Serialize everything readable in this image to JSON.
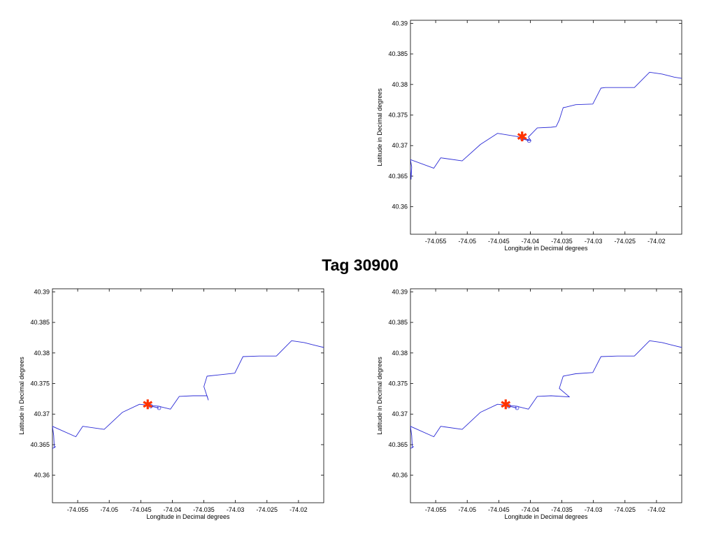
{
  "title": "Tag 30900",
  "colors": {
    "track": "#2b2bd6",
    "marker": "#ff3300",
    "axes": "#000000"
  },
  "chart_data": [
    {
      "type": "line",
      "xlabel": "Longitude in Decimal degrees",
      "ylabel": "Latitude in Decimal degrees",
      "xlim": [
        -74.059,
        -74.016
      ],
      "ylim": [
        40.3555,
        40.3905
      ],
      "xticks": [
        -74.055,
        -74.05,
        -74.045,
        -74.04,
        -74.035,
        -74.03,
        -74.025,
        -74.02
      ],
      "xtick_labels": [
        "-74.055",
        "-74.05",
        "-74.045",
        "-74.04",
        "-74.035",
        "-74.03",
        "-74.025",
        "-74.02"
      ],
      "yticks": [
        40.36,
        40.365,
        40.37,
        40.375,
        40.38,
        40.385,
        40.39
      ],
      "ytick_labels": [
        "40.36",
        "40.365",
        "40.37",
        "40.375",
        "40.38",
        "40.385",
        "40.39"
      ],
      "grid": false,
      "series": [
        {
          "x": [
            -74.0591,
            -74.0589,
            -74.0588,
            -74.059,
            -74.0553,
            -74.0542,
            -74.0508,
            -74.0479,
            -74.0452,
            -74.0422,
            -74.0414,
            -74.0399,
            -74.0403,
            -74.0389,
            -74.0367,
            -74.0359,
            -74.0354,
            -74.0348,
            -74.0343,
            -74.0328,
            -74.0301,
            -74.0288,
            -74.0281,
            -74.0261,
            -74.0235,
            -74.0211,
            -74.0191,
            -74.0172,
            -74.016
          ],
          "y": [
            40.368,
            40.3645,
            40.3665,
            40.3677,
            40.3663,
            40.368,
            40.3675,
            40.3702,
            40.372,
            40.3715,
            40.3713,
            40.3708,
            40.3714,
            40.3729,
            40.373,
            40.3731,
            40.3742,
            40.3762,
            40.3763,
            40.3767,
            40.3768,
            40.3794,
            40.3795,
            40.3795,
            40.3795,
            40.382,
            40.3817,
            40.3812,
            40.381
          ]
        },
        {
          "x": [
            -74.0413,
            -74.0402
          ],
          "y": [
            40.3711,
            40.3708
          ]
        }
      ],
      "markers": [
        {
          "x": -74.0413,
          "y": 40.3715,
          "symbol": "asterisk"
        }
      ]
    },
    {
      "type": "line",
      "xlabel": "Longitude in Decimal degrees",
      "ylabel": "Latitude in Decimal degrees",
      "xlim": [
        -74.059,
        -74.016
      ],
      "ylim": [
        40.3555,
        40.3905
      ],
      "xticks": [
        -74.055,
        -74.05,
        -74.045,
        -74.04,
        -74.035,
        -74.03,
        -74.025,
        -74.02
      ],
      "xtick_labels": [
        "-74.055",
        "-74.05",
        "-74.045",
        "-74.04",
        "-74.035",
        "-74.03",
        "-74.025",
        "-74.02"
      ],
      "yticks": [
        40.36,
        40.365,
        40.37,
        40.375,
        40.38,
        40.385,
        40.39
      ],
      "ytick_labels": [
        "40.36",
        "40.365",
        "40.37",
        "40.375",
        "40.38",
        "40.385",
        "40.39"
      ],
      "grid": false,
      "series": [
        {
          "x": [
            -74.0591,
            -74.0585,
            -74.0587,
            -74.0588,
            -74.059,
            -74.0553,
            -74.0542,
            -74.0508,
            -74.0479,
            -74.0452,
            -74.0422,
            -74.0403,
            -74.0389,
            -74.0367,
            -74.0345,
            -74.0343,
            -74.035,
            -74.0345,
            -74.0328,
            -74.0301,
            -74.0288,
            -74.0262,
            -74.0235,
            -74.0211,
            -74.0191,
            -74.0172,
            -74.016
          ],
          "y": [
            40.3643,
            40.3647,
            40.3645,
            40.3665,
            40.368,
            40.3663,
            40.368,
            40.3675,
            40.3703,
            40.3716,
            40.3713,
            40.3708,
            40.3729,
            40.373,
            40.373,
            40.3723,
            40.3745,
            40.3762,
            40.3764,
            40.3767,
            40.3794,
            40.3795,
            40.3795,
            40.382,
            40.3817,
            40.3812,
            40.3809
          ]
        },
        {
          "x": [
            -74.0434,
            -74.0421
          ],
          "y": [
            40.3713,
            40.371
          ]
        }
      ],
      "markers": [
        {
          "x": -74.0439,
          "y": 40.3716,
          "symbol": "asterisk"
        }
      ]
    },
    {
      "type": "line",
      "xlabel": "Longitude in Decimal degrees",
      "ylabel": "Latitude in Decimal degrees",
      "xlim": [
        -74.059,
        -74.016
      ],
      "ylim": [
        40.3555,
        40.3905
      ],
      "xticks": [
        -74.055,
        -74.05,
        -74.045,
        -74.04,
        -74.035,
        -74.03,
        -74.025,
        -74.02
      ],
      "xtick_labels": [
        "-74.055",
        "-74.05",
        "-74.045",
        "-74.04",
        "-74.035",
        "-74.03",
        "-74.025",
        "-74.02"
      ],
      "yticks": [
        40.36,
        40.365,
        40.37,
        40.375,
        40.38,
        40.385,
        40.39
      ],
      "ytick_labels": [
        "40.36",
        "40.365",
        "40.37",
        "40.375",
        "40.38",
        "40.385",
        "40.39"
      ],
      "grid": false,
      "series": [
        {
          "x": [
            -74.0591,
            -74.0585,
            -74.0587,
            -74.0588,
            -74.059,
            -74.0553,
            -74.0542,
            -74.0508,
            -74.0479,
            -74.0452,
            -74.0422,
            -74.0403,
            -74.0389,
            -74.0367,
            -74.0338,
            -74.0354,
            -74.0348,
            -74.0343,
            -74.0328,
            -74.0301,
            -74.0288,
            -74.0262,
            -74.0235,
            -74.0211,
            -74.0191,
            -74.0172,
            -74.016
          ],
          "y": [
            40.3643,
            40.3647,
            40.3645,
            40.3665,
            40.368,
            40.3663,
            40.368,
            40.3675,
            40.3703,
            40.3716,
            40.3713,
            40.3708,
            40.3729,
            40.373,
            40.3728,
            40.3742,
            40.3762,
            40.3763,
            40.3766,
            40.3768,
            40.3794,
            40.3795,
            40.3795,
            40.382,
            40.3817,
            40.3812,
            40.3809
          ]
        },
        {
          "x": [
            -74.0434,
            -74.0421
          ],
          "y": [
            40.3713,
            40.371
          ]
        }
      ],
      "markers": [
        {
          "x": -74.0439,
          "y": 40.3716,
          "symbol": "asterisk"
        }
      ]
    }
  ]
}
